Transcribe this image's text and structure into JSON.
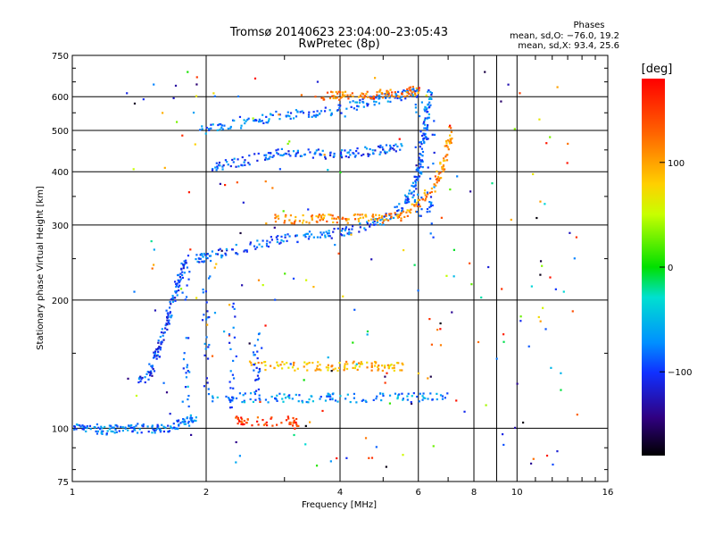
{
  "chart_data": {
    "type": "scatter",
    "title": "Tromsø 20140623 23:04:00–23:05:43",
    "subtitle": "RwPretec (8p)",
    "phases_block": {
      "heading": "Phases",
      "line1": "mean, sd,O: −76.0, 19.2",
      "line2": "mean, sd,X:  93.4, 25.6"
    },
    "xlabel": "Frequency [MHz]",
    "ylabel": "Stationary phase Virtual Height [km]",
    "x_scale": "log",
    "y_scale": "log",
    "xlim": [
      1,
      16
    ],
    "ylim": [
      75,
      750
    ],
    "x_ticks": [
      1,
      2,
      4,
      6,
      8,
      10,
      16
    ],
    "x_tick_labels": [
      "1",
      "2",
      "4",
      "6",
      "8",
      "10",
      "16"
    ],
    "y_ticks": [
      75,
      100,
      200,
      300,
      400,
      500,
      600,
      750
    ],
    "y_tick_labels": [
      "75",
      "100",
      "200",
      "300",
      "400",
      "500",
      "600",
      "750"
    ],
    "grid": true,
    "colorbar": {
      "unit_label": "[deg]",
      "range": [
        -180,
        180
      ],
      "ticks": [
        100,
        0,
        -100
      ],
      "tick_labels": [
        "100",
        "0",
        "−100"
      ],
      "colormap": "rainbow",
      "colors": [
        "#d40000",
        "#ff6000",
        "#ffd000",
        "#d0ff00",
        "#00e000",
        "#00e0c0",
        "#00a0ff",
        "#2040ff",
        "#3010a0",
        "#000000"
      ]
    },
    "traces": [
      {
        "note": "low echo band near 100 km",
        "points": [
          [
            1.0,
            100
          ],
          [
            1.1,
            100
          ],
          [
            1.2,
            99
          ],
          [
            1.3,
            100
          ],
          [
            1.4,
            100
          ],
          [
            1.55,
            100
          ],
          [
            1.7,
            101
          ],
          [
            1.8,
            103
          ],
          [
            1.9,
            106
          ]
        ],
        "phase": -80
      },
      {
        "note": "E/F1 rising curve",
        "points": [
          [
            1.4,
            128
          ],
          [
            1.5,
            135
          ],
          [
            1.55,
            150
          ],
          [
            1.6,
            165
          ],
          [
            1.65,
            185
          ],
          [
            1.7,
            205
          ],
          [
            1.75,
            230
          ],
          [
            1.8,
            250
          ]
        ],
        "phase": -95
      },
      {
        "note": "F trace O-mode",
        "points": [
          [
            1.9,
            250
          ],
          [
            2.0,
            252
          ],
          [
            2.3,
            262
          ],
          [
            2.7,
            272
          ],
          [
            3.0,
            278
          ],
          [
            3.5,
            283
          ],
          [
            4.0,
            288
          ],
          [
            4.5,
            296
          ],
          [
            5.0,
            308
          ],
          [
            5.5,
            330
          ],
          [
            5.8,
            360
          ],
          [
            6.0,
            395
          ],
          [
            6.1,
            440
          ],
          [
            6.2,
            500
          ],
          [
            6.3,
            560
          ],
          [
            6.35,
            620
          ]
        ],
        "phase": -85
      },
      {
        "note": "F trace X-mode",
        "points": [
          [
            2.8,
            310
          ],
          [
            3.2,
            310
          ],
          [
            3.6,
            310
          ],
          [
            4.0,
            310
          ],
          [
            4.5,
            310
          ],
          [
            5.0,
            310
          ],
          [
            5.5,
            315
          ],
          [
            6.0,
            335
          ],
          [
            6.5,
            370
          ],
          [
            6.8,
            410
          ],
          [
            7.0,
            460
          ],
          [
            7.05,
            500
          ]
        ],
        "phase": 110
      },
      {
        "note": "2nd hop band ~430-470 km",
        "points": [
          [
            2.0,
            405
          ],
          [
            2.3,
            420
          ],
          [
            2.7,
            435
          ],
          [
            3.0,
            445
          ],
          [
            3.5,
            440
          ],
          [
            4.0,
            440
          ],
          [
            4.5,
            445
          ],
          [
            5.0,
            450
          ],
          [
            5.5,
            460
          ]
        ],
        "phase": -90
      },
      {
        "note": "3rd band ~520-560 km",
        "points": [
          [
            1.95,
            500
          ],
          [
            2.2,
            510
          ],
          [
            2.6,
            530
          ],
          [
            3.0,
            545
          ],
          [
            3.5,
            550
          ],
          [
            4.0,
            560
          ],
          [
            4.5,
            580
          ],
          [
            5.0,
            595
          ],
          [
            5.5,
            605
          ],
          [
            6.0,
            615
          ]
        ],
        "phase": -80
      },
      {
        "note": "upper X-mode band ~600 km",
        "points": [
          [
            3.5,
            605
          ],
          [
            4.0,
            605
          ],
          [
            4.5,
            605
          ],
          [
            5.0,
            610
          ],
          [
            5.5,
            615
          ],
          [
            6.0,
            620
          ]
        ],
        "phase": 120
      },
      {
        "note": "sporadic band ~140 km",
        "points": [
          [
            2.5,
            140
          ],
          [
            3.0,
            140
          ],
          [
            3.5,
            140
          ],
          [
            4.0,
            140
          ],
          [
            4.5,
            140
          ],
          [
            5.0,
            140
          ],
          [
            5.5,
            140
          ]
        ],
        "phase": 90
      },
      {
        "note": "sporadic band ~120 km",
        "points": [
          [
            2.0,
            118
          ],
          [
            2.5,
            118
          ],
          [
            3.0,
            118
          ],
          [
            3.5,
            118
          ],
          [
            4.0,
            118
          ],
          [
            5.0,
            118
          ],
          [
            6.0,
            118
          ],
          [
            7.0,
            118
          ]
        ],
        "phase": -70
      },
      {
        "note": "orange ~105 km",
        "points": [
          [
            2.35,
            105
          ],
          [
            2.5,
            104
          ],
          [
            3.1,
            104
          ],
          [
            3.2,
            102
          ]
        ],
        "phase": 150
      }
    ]
  }
}
